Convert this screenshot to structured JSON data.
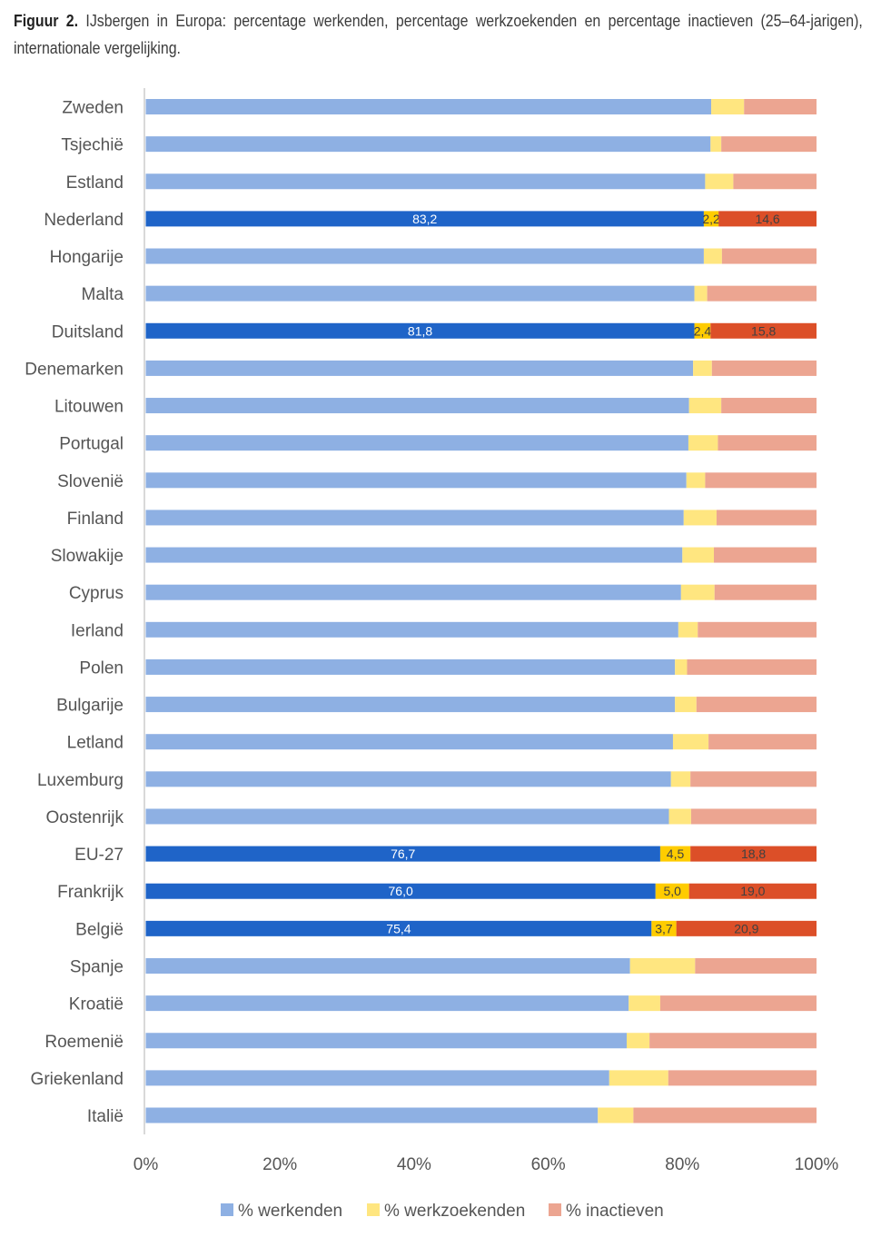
{
  "caption": {
    "prefix": "Figuur 2.",
    "text": "IJsbergen in Europa: percentage werkenden, percentage werkzoekenden en percentage inactieven (25–64-jarigen), internationale vergelijking."
  },
  "chart_data": {
    "type": "bar",
    "orientation": "horizontal",
    "stacked": true,
    "title": "IJsbergen in Europa: percentage werkenden, percentage werkzoekenden en percentage inactieven (25–64-jarigen), internationale vergelijking.",
    "xlabel": "",
    "ylabel": "",
    "xlim": [
      0,
      100
    ],
    "x_ticks": [
      "0%",
      "20%",
      "40%",
      "60%",
      "80%",
      "100%"
    ],
    "grid": false,
    "legend_position": "bottom",
    "categories": [
      "Zweden",
      "Tsjechië",
      "Estland",
      "Nederland",
      "Hongarije",
      "Malta",
      "Duitsland",
      "Denemarken",
      "Litouwen",
      "Portugal",
      "Slovenië",
      "Finland",
      "Slowakije",
      "Cyprus",
      "Ierland",
      "Polen",
      "Bulgarije",
      "Letland",
      "Luxemburg",
      "Oostenrijk",
      "EU-27",
      "Frankrijk",
      "België",
      "Spanje",
      "Kroatië",
      "Roemenië",
      "Griekenland",
      "Italië"
    ],
    "highlighted": [
      "Nederland",
      "Duitsland",
      "EU-27",
      "Frankrijk",
      "België"
    ],
    "series": [
      {
        "name": "% werkenden",
        "color": "#8EB0E3",
        "highlight_color": "#1F64C8",
        "values": [
          84.3,
          84.2,
          83.4,
          83.2,
          83.2,
          81.8,
          81.8,
          81.6,
          81.0,
          80.9,
          80.6,
          80.2,
          80.0,
          79.8,
          79.4,
          78.9,
          78.9,
          78.6,
          78.3,
          78.0,
          76.7,
          76.0,
          75.4,
          72.2,
          72.0,
          71.7,
          69.1,
          67.4
        ]
      },
      {
        "name": "% werkzoekenden",
        "color": "#FFE680",
        "highlight_color": "#FFCC00",
        "values": [
          4.9,
          1.6,
          4.2,
          2.2,
          2.7,
          1.9,
          2.4,
          2.8,
          4.8,
          4.4,
          2.8,
          4.9,
          4.7,
          5.0,
          2.9,
          1.8,
          3.2,
          5.3,
          2.9,
          3.3,
          4.5,
          5.0,
          3.7,
          9.7,
          4.7,
          3.4,
          8.8,
          5.3
        ]
      },
      {
        "name": "% inactieven",
        "color": "#ECA591",
        "highlight_color": "#DC4F28",
        "values": [
          10.8,
          14.2,
          12.4,
          14.6,
          14.1,
          16.3,
          15.8,
          15.6,
          14.2,
          14.7,
          16.6,
          14.9,
          15.3,
          15.2,
          17.7,
          19.3,
          17.9,
          16.1,
          18.8,
          18.7,
          18.8,
          19.0,
          20.9,
          18.1,
          23.3,
          24.9,
          22.1,
          27.3
        ]
      }
    ],
    "data_labels": {
      "Nederland": [
        "83,2",
        "2,2",
        "14,6"
      ],
      "Duitsland": [
        "81,8",
        "2,4",
        "15,8"
      ],
      "EU-27": [
        "76,7",
        "4,5",
        "18,8"
      ],
      "Frankrijk": [
        "76,0",
        "5,0",
        "19,0"
      ],
      "België": [
        "75,4",
        "3,7",
        "20,9"
      ]
    }
  }
}
